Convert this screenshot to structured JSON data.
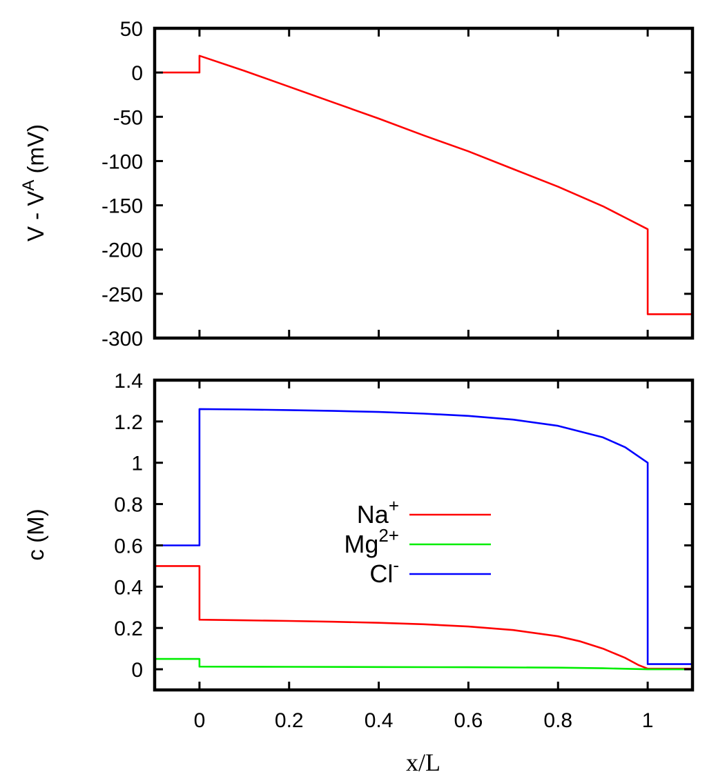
{
  "colors": {
    "na": "#ff0000",
    "mg": "#00ee00",
    "cl": "#0000ff",
    "potential": "#ff0000"
  },
  "chart_data": [
    {
      "type": "line",
      "ylabel_main": "V - V",
      "ylabel_sup": "A",
      "ylabel_unit": " (mV)",
      "xlim": [
        -0.1,
        1.1
      ],
      "ylim": [
        -300,
        50
      ],
      "yticks": [
        "50",
        "0",
        "-50",
        "-100",
        "-150",
        "-200",
        "-250",
        "-300"
      ],
      "yticks_values": [
        50,
        0,
        -50,
        -100,
        -150,
        -200,
        -250,
        -300
      ],
      "xticks_values": [
        0,
        0.2,
        0.4,
        0.6,
        0.8,
        1.0
      ],
      "grid": false,
      "series": [
        {
          "color_key": "potential",
          "x": [
            -0.1,
            0,
            0,
            0.1,
            0.2,
            0.3,
            0.4,
            0.5,
            0.6,
            0.7,
            0.8,
            0.9,
            0.95,
            1.0,
            1.0,
            1.1
          ],
          "y": [
            0,
            0,
            19,
            2,
            -16,
            -34,
            -52,
            -71,
            -89,
            -109,
            -129,
            -151,
            -164,
            -177,
            -273,
            -273
          ]
        }
      ]
    },
    {
      "type": "line",
      "ylabel": "c (M)",
      "xlabel": "x/L",
      "xlim": [
        -0.1,
        1.1
      ],
      "ylim": [
        -0.1,
        1.4
      ],
      "yticks": [
        "1.4",
        "1.2",
        "1",
        "0.8",
        "0.6",
        "0.4",
        "0.2",
        "0"
      ],
      "yticks_values": [
        1.4,
        1.2,
        1.0,
        0.8,
        0.6,
        0.4,
        0.2,
        0
      ],
      "xticks": [
        "0",
        "0.2",
        "0.4",
        "0.6",
        "0.8",
        "1"
      ],
      "xticks_values": [
        0,
        0.2,
        0.4,
        0.6,
        0.8,
        1.0
      ],
      "grid": false,
      "legend_position": "center",
      "series": [
        {
          "name": "Na",
          "name_sup": "+",
          "color_key": "na",
          "x": [
            -0.1,
            0,
            0,
            0.1,
            0.2,
            0.3,
            0.4,
            0.5,
            0.6,
            0.7,
            0.8,
            0.85,
            0.9,
            0.95,
            0.98,
            1.0,
            1.0,
            1.1
          ],
          "y": [
            0.5,
            0.5,
            0.24,
            0.237,
            0.234,
            0.23,
            0.225,
            0.218,
            0.207,
            0.19,
            0.16,
            0.135,
            0.1,
            0.055,
            0.02,
            0.003,
            0.003,
            0.003
          ]
        },
        {
          "name": "Mg",
          "name_sup": "2+",
          "color_key": "mg",
          "x": [
            -0.1,
            0,
            0,
            0.2,
            0.4,
            0.6,
            0.8,
            0.9,
            1.0,
            1.0,
            1.1
          ],
          "y": [
            0.05,
            0.05,
            0.013,
            0.012,
            0.011,
            0.01,
            0.008,
            0.005,
            0.0,
            0.0,
            0.0
          ]
        },
        {
          "name": "Cl",
          "name_sup": "-",
          "color_key": "cl",
          "x": [
            -0.1,
            0,
            0,
            0.1,
            0.2,
            0.3,
            0.4,
            0.5,
            0.6,
            0.7,
            0.8,
            0.9,
            0.95,
            1.0,
            1.0,
            1.1
          ],
          "y": [
            0.6,
            0.6,
            1.26,
            1.258,
            1.255,
            1.251,
            1.246,
            1.238,
            1.227,
            1.209,
            1.179,
            1.123,
            1.075,
            1.0,
            0.025,
            0.025
          ]
        }
      ]
    }
  ]
}
